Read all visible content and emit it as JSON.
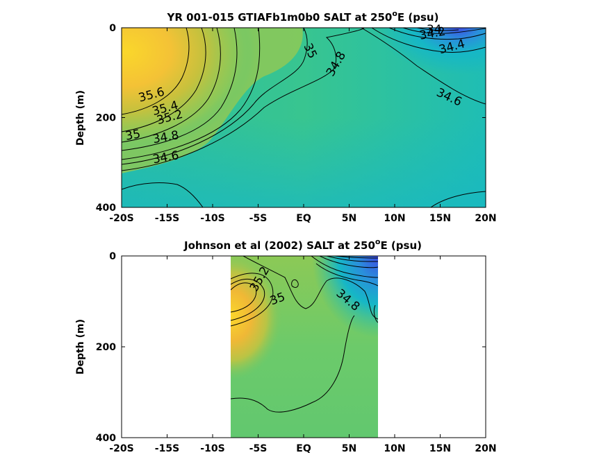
{
  "chart_data": [
    {
      "type": "heatmap",
      "title_main": "YR 001-015 GTIAFb1m0b0 SALT at 250",
      "title_sup": "o",
      "title_end": "E (psu)",
      "ylabel": "Depth (m)",
      "xlabel": "",
      "xlim": [
        -20,
        20
      ],
      "ylim": [
        0,
        400
      ],
      "y_reversed": true,
      "xticks": [
        -20,
        -15,
        -10,
        -5,
        0,
        5,
        10,
        15,
        20
      ],
      "xtick_labels": [
        "-20S",
        "-15S",
        "-10S",
        "-5S",
        "EQ",
        "5N",
        "10N",
        "15N",
        "20N"
      ],
      "yticks": [
        0,
        200,
        400
      ],
      "ytick_labels": [
        "0",
        "200",
        "400"
      ],
      "data_xrange": [
        -20,
        20
      ],
      "colormap": [
        "#3d4ce0",
        "#2a9bd8",
        "#16b7c6",
        "#2ec29f",
        "#59c878",
        "#8ec956",
        "#c4c23c",
        "#f0b836",
        "#fad72b"
      ],
      "color_limits": [
        33.9,
        35.9
      ],
      "contour_labels": [
        {
          "text": "35.6",
          "x": -18,
          "y": 165
        },
        {
          "text": "35.4",
          "x": -16.5,
          "y": 195
        },
        {
          "text": "35.2",
          "x": -16,
          "y": 215
        },
        {
          "text": "35",
          "x": -19.5,
          "y": 250
        },
        {
          "text": "34.8",
          "x": -16.5,
          "y": 257
        },
        {
          "text": "34.6",
          "x": -16.5,
          "y": 302
        },
        {
          "text": "35",
          "x": 0,
          "y": 40
        },
        {
          "text": "34.8",
          "x": 3.2,
          "y": 110
        },
        {
          "text": "34.6",
          "x": 14.5,
          "y": 150
        },
        {
          "text": "34.4",
          "x": 15,
          "y": 58
        },
        {
          "text": "34.2",
          "x": 12.8,
          "y": 26
        },
        {
          "text": "34",
          "x": 13.5,
          "y": 12
        }
      ]
    },
    {
      "type": "heatmap",
      "title_main": "Johnson et al (2002) SALT at 250",
      "title_sup": "o",
      "title_end": "E (psu)",
      "ylabel": "Depth (m)",
      "xlabel": "",
      "xlim": [
        -20,
        20
      ],
      "ylim": [
        0,
        400
      ],
      "y_reversed": true,
      "xticks": [
        -20,
        -15,
        -10,
        -5,
        0,
        5,
        10,
        15,
        20
      ],
      "xtick_labels": [
        "-20S",
        "-15S",
        "-10S",
        "-5S",
        "EQ",
        "5N",
        "10N",
        "15N",
        "20N"
      ],
      "yticks": [
        0,
        200,
        400
      ],
      "ytick_labels": [
        "0",
        "200",
        "400"
      ],
      "data_xrange": [
        -8,
        8.3
      ],
      "colormap": [
        "#3d4ce0",
        "#2a9bd8",
        "#16b7c6",
        "#2ec29f",
        "#59c878",
        "#8ec956",
        "#c4c23c",
        "#f0b836",
        "#fad72b"
      ],
      "color_limits": [
        33.9,
        35.9
      ],
      "contour_labels": [
        {
          "text": "35.2",
          "x": -5.2,
          "y": 80
        },
        {
          "text": "35",
          "x": -3.5,
          "y": 108
        },
        {
          "text": "34.8",
          "x": 3.5,
          "y": 85
        }
      ]
    }
  ]
}
